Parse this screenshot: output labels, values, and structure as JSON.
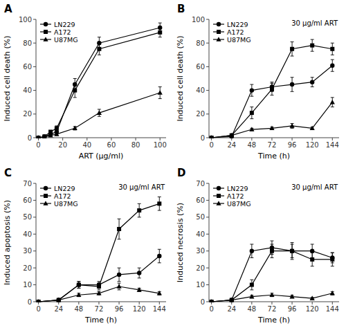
{
  "chart_data": [
    {
      "type": "line",
      "title": "A",
      "x_label": "ART (μg/ml)",
      "y_label": "Induced cell death (%)",
      "xlim": [
        -2,
        105
      ],
      "ylim": [
        0,
        100
      ],
      "xticks": [
        0,
        20,
        40,
        60,
        80,
        100
      ],
      "yticks": [
        0,
        20,
        40,
        60,
        80,
        100
      ],
      "legend": "upper left",
      "x": [
        0,
        5,
        10,
        15,
        30,
        50,
        100
      ],
      "series": [
        {
          "name": "LN229",
          "color": "#000000",
          "marker": "circle",
          "values": [
            0,
            1,
            3,
            5,
            45,
            80,
            93
          ],
          "errors": [
            0,
            0.5,
            1,
            1.5,
            5,
            5,
            4
          ]
        },
        {
          "name": "A172",
          "color": "#000000",
          "marker": "square",
          "values": [
            0,
            1,
            5,
            8,
            40,
            75,
            89
          ],
          "errors": [
            0,
            0.5,
            1,
            2,
            6,
            5,
            4
          ]
        },
        {
          "name": "U87MG",
          "color": "#000000",
          "marker": "triangle",
          "values": [
            0,
            0.5,
            2,
            3,
            8,
            21,
            38
          ],
          "errors": [
            0,
            0.3,
            0.8,
            1,
            1.5,
            3,
            5
          ]
        }
      ]
    },
    {
      "type": "line",
      "title": "B",
      "annotation": "30 μg/ml ART",
      "x_label": "Time (h)",
      "y_label": "Induced cell death (%)",
      "xlim": [
        -3,
        152
      ],
      "ylim": [
        0,
        100
      ],
      "xticks": [
        0,
        24,
        48,
        72,
        96,
        120,
        144
      ],
      "yticks": [
        0,
        20,
        40,
        60,
        80,
        100
      ],
      "legend": "upper left",
      "x": [
        0,
        24,
        48,
        72,
        96,
        120,
        144
      ],
      "series": [
        {
          "name": "LN229",
          "color": "#000000",
          "marker": "circle",
          "values": [
            0,
            1,
            40,
            43,
            45,
            47,
            61
          ],
          "errors": [
            0,
            1,
            5,
            4,
            6,
            4,
            5
          ]
        },
        {
          "name": "A172",
          "color": "#000000",
          "marker": "square",
          "values": [
            0,
            2,
            21,
            41,
            75,
            78,
            75
          ],
          "errors": [
            0,
            1,
            5,
            5,
            6,
            5,
            5
          ]
        },
        {
          "name": "U87MG",
          "color": "#000000",
          "marker": "triangle",
          "values": [
            0,
            2,
            7,
            8,
            10,
            8,
            30
          ],
          "errors": [
            0,
            1,
            1,
            1,
            2,
            1,
            4
          ]
        }
      ]
    },
    {
      "type": "line",
      "title": "C",
      "annotation": "30 μg/ml ART",
      "x_label": "Time (h)",
      "y_label": "Induced apoptosis (%)",
      "xlim": [
        -3,
        152
      ],
      "ylim": [
        0,
        70
      ],
      "xticks": [
        0,
        24,
        48,
        72,
        96,
        120,
        144
      ],
      "yticks": [
        0,
        10,
        20,
        30,
        40,
        50,
        60,
        70
      ],
      "legend": "upper left",
      "x": [
        0,
        24,
        48,
        72,
        96,
        120,
        144
      ],
      "series": [
        {
          "name": "LN229",
          "color": "#000000",
          "marker": "circle",
          "values": [
            0,
            1,
            10,
            10,
            16,
            17,
            27
          ],
          "errors": [
            0,
            0.5,
            2,
            2,
            4,
            3,
            4
          ]
        },
        {
          "name": "A172",
          "color": "#000000",
          "marker": "square",
          "values": [
            0,
            1,
            10,
            9,
            43,
            54,
            58
          ],
          "errors": [
            0,
            0.5,
            2,
            2,
            6,
            4,
            4
          ]
        },
        {
          "name": "U87MG",
          "color": "#000000",
          "marker": "triangle",
          "values": [
            0,
            1,
            4,
            5,
            9,
            7,
            5
          ],
          "errors": [
            0,
            0.5,
            1,
            1,
            2,
            1,
            1
          ]
        }
      ]
    },
    {
      "type": "line",
      "title": "D",
      "annotation": "30 μg/ml ART",
      "x_label": "Time (h)",
      "y_label": "Induced necrosis (%)",
      "xlim": [
        -3,
        152
      ],
      "ylim": [
        0,
        70
      ],
      "xticks": [
        0,
        24,
        48,
        72,
        96,
        120,
        144
      ],
      "yticks": [
        0,
        10,
        20,
        30,
        40,
        50,
        60,
        70
      ],
      "legend": "upper left",
      "x": [
        0,
        24,
        48,
        72,
        96,
        120,
        144
      ],
      "series": [
        {
          "name": "LN229",
          "color": "#000000",
          "marker": "circle",
          "values": [
            0,
            1,
            30,
            32,
            30,
            30,
            26
          ],
          "errors": [
            0,
            0.5,
            4,
            4,
            4,
            4,
            3
          ]
        },
        {
          "name": "A172",
          "color": "#000000",
          "marker": "square",
          "values": [
            0,
            1,
            10,
            30,
            30,
            25,
            25
          ],
          "errors": [
            0,
            0.5,
            3,
            4,
            5,
            4,
            4
          ]
        },
        {
          "name": "U87MG",
          "color": "#000000",
          "marker": "triangle",
          "values": [
            0,
            1,
            3,
            4,
            3,
            2,
            5
          ],
          "errors": [
            0,
            0.5,
            0.8,
            1,
            0.8,
            0.5,
            1
          ]
        }
      ]
    }
  ]
}
